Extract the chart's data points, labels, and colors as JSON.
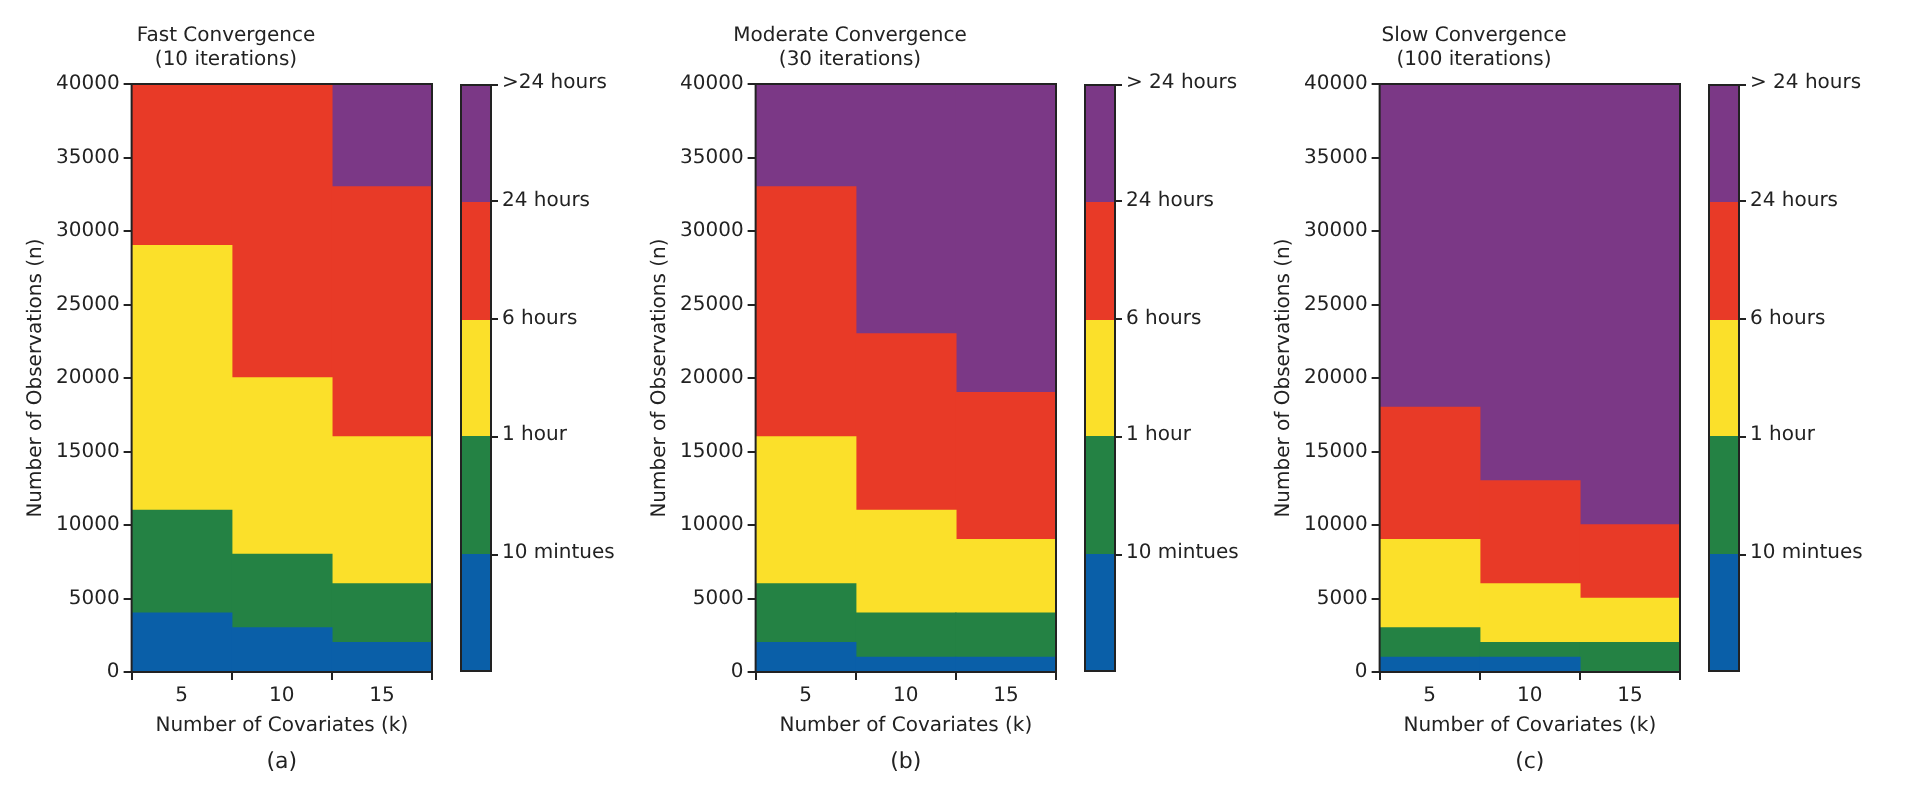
{
  "chart_data": [
    {
      "type": "bar",
      "title": "Fast Convergence",
      "subtitle": "(10 iterations)",
      "xlabel": "Number of Covariates (k)",
      "ylabel": "Number of Observations (n)",
      "categories": [
        "5",
        "10",
        "15"
      ],
      "stacked": true,
      "ylim": [
        0,
        40000
      ],
      "yticks": [
        0,
        5000,
        10000,
        15000,
        20000,
        25000,
        30000,
        35000,
        40000
      ],
      "legend": "right",
      "annotations": [
        "(a)"
      ],
      "series": [
        {
          "name": "10 mintues",
          "color": "#0a5fa8",
          "values": [
            4000,
            3000,
            2000
          ]
        },
        {
          "name": "1 hour",
          "color": "#248244",
          "values": [
            7000,
            5000,
            4000
          ]
        },
        {
          "name": "6 hours",
          "color": "#fbe02a",
          "values": [
            18000,
            12000,
            10000
          ]
        },
        {
          "name": "24 hours",
          "color": "#e83a27",
          "values": [
            11000,
            20000,
            17000
          ]
        },
        {
          "name": ">24 hours",
          "color": "#7b3886",
          "values": [
            0,
            0,
            7000
          ]
        }
      ]
    },
    {
      "type": "bar",
      "title": "Moderate Convergence",
      "subtitle": "(30 iterations)",
      "xlabel": "Number of Covariates (k)",
      "ylabel": "Number of Observations (n)",
      "categories": [
        "5",
        "10",
        "15"
      ],
      "stacked": true,
      "ylim": [
        0,
        40000
      ],
      "yticks": [
        0,
        5000,
        10000,
        15000,
        20000,
        25000,
        30000,
        35000,
        40000
      ],
      "legend": "right",
      "annotations": [
        "(b)"
      ],
      "series": [
        {
          "name": "10 mintues",
          "color": "#0a5fa8",
          "values": [
            2000,
            1000,
            1000
          ]
        },
        {
          "name": "1 hour",
          "color": "#248244",
          "values": [
            4000,
            3000,
            3000
          ]
        },
        {
          "name": "6 hours",
          "color": "#fbe02a",
          "values": [
            10000,
            7000,
            5000
          ]
        },
        {
          "name": "24 hours",
          "color": "#e83a27",
          "values": [
            17000,
            12000,
            10000
          ]
        },
        {
          "name": "> 24 hours",
          "color": "#7b3886",
          "values": [
            7000,
            17000,
            21000
          ]
        }
      ]
    },
    {
      "type": "bar",
      "title": "Slow Convergence",
      "subtitle": "(100 iterations)",
      "xlabel": "Number of Covariates (k)",
      "ylabel": "Number of Observations (n)",
      "categories": [
        "5",
        "10",
        "15"
      ],
      "stacked": true,
      "ylim": [
        0,
        40000
      ],
      "yticks": [
        0,
        5000,
        10000,
        15000,
        20000,
        25000,
        30000,
        35000,
        40000
      ],
      "legend": "right",
      "annotations": [
        "(c)"
      ],
      "series": [
        {
          "name": "10 mintues",
          "color": "#0a5fa8",
          "values": [
            1000,
            1000,
            0
          ]
        },
        {
          "name": "1 hour",
          "color": "#248244",
          "values": [
            2000,
            1000,
            2000
          ]
        },
        {
          "name": "6 hours",
          "color": "#fbe02a",
          "values": [
            6000,
            4000,
            3000
          ]
        },
        {
          "name": "24 hours",
          "color": "#e83a27",
          "values": [
            9000,
            7000,
            5000
          ]
        },
        {
          "name": "> 24 hours",
          "color": "#7b3886",
          "values": [
            22000,
            27000,
            30000
          ]
        }
      ]
    }
  ]
}
